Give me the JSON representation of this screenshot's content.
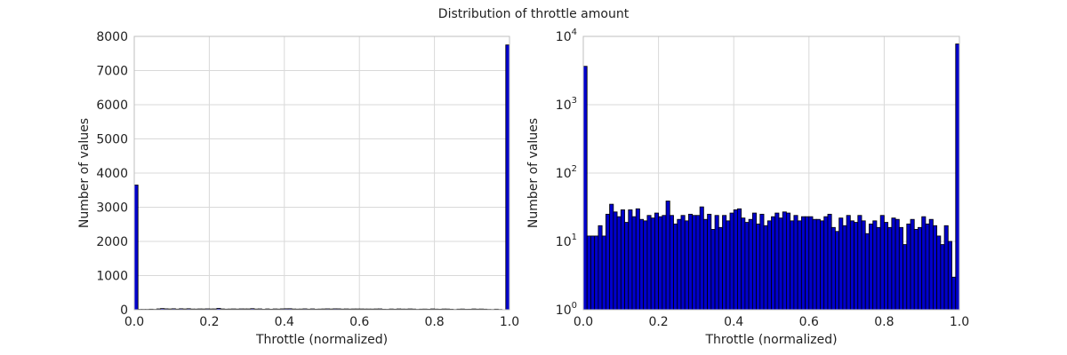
{
  "figure_title": "Distribution of throttle amount",
  "chart_data": [
    {
      "type": "bar",
      "scale": "linear",
      "xlabel": "Throttle (normalized)",
      "ylabel": "Number of values",
      "xlim": [
        0,
        1
      ],
      "ylim": [
        0,
        8000
      ],
      "xticks": [
        "0.0",
        "0.2",
        "0.4",
        "0.6",
        "0.8",
        "1.0"
      ],
      "yticks": [
        "0",
        "1000",
        "2000",
        "3000",
        "4000",
        "5000",
        "6000",
        "7000",
        "8000"
      ],
      "grid": true,
      "bar_color": "#0000cc",
      "bin_count": 100,
      "bin_width": 0.01,
      "values": [
        3650,
        12,
        12,
        12,
        17,
        12,
        25,
        35,
        27,
        23,
        29,
        19,
        29,
        23,
        30,
        21,
        20,
        24,
        22,
        26,
        23,
        24,
        39,
        24,
        18,
        21,
        24,
        20,
        25,
        24,
        24,
        32,
        21,
        25,
        15,
        24,
        16,
        24,
        20,
        26,
        29,
        30,
        22,
        19,
        21,
        26,
        18,
        25,
        17,
        20,
        23,
        26,
        22,
        27,
        26,
        20,
        24,
        20,
        23,
        23,
        23,
        21,
        21,
        20,
        23,
        25,
        16,
        14,
        22,
        17,
        24,
        20,
        19,
        24,
        20,
        13,
        18,
        20,
        16,
        24,
        19,
        16,
        22,
        21,
        16,
        9,
        18,
        21,
        15,
        16,
        23,
        18,
        21,
        17,
        12,
        9,
        17,
        10,
        3,
        7750
      ]
    },
    {
      "type": "bar",
      "scale": "log",
      "xlabel": "Throttle (normalized)",
      "ylabel": "Number of values",
      "xlim": [
        0,
        1
      ],
      "ylim": [
        1,
        10000
      ],
      "xticks": [
        "0.0",
        "0.2",
        "0.4",
        "0.6",
        "0.8",
        "1.0"
      ],
      "yticks": [
        {
          "base": "10",
          "exp": "0"
        },
        {
          "base": "10",
          "exp": "1"
        },
        {
          "base": "10",
          "exp": "2"
        },
        {
          "base": "10",
          "exp": "3"
        },
        {
          "base": "10",
          "exp": "4"
        }
      ],
      "grid": true,
      "bar_color": "#0000cc",
      "bin_count": 100,
      "bin_width": 0.01,
      "values": [
        3650,
        12,
        12,
        12,
        17,
        12,
        25,
        35,
        27,
        23,
        29,
        19,
        29,
        23,
        30,
        21,
        20,
        24,
        22,
        26,
        23,
        24,
        39,
        24,
        18,
        21,
        24,
        20,
        25,
        24,
        24,
        32,
        21,
        25,
        15,
        24,
        16,
        24,
        20,
        26,
        29,
        30,
        22,
        19,
        21,
        26,
        18,
        25,
        17,
        20,
        23,
        26,
        22,
        27,
        26,
        20,
        24,
        20,
        23,
        23,
        23,
        21,
        21,
        20,
        23,
        25,
        16,
        14,
        22,
        17,
        24,
        20,
        19,
        24,
        20,
        13,
        18,
        20,
        16,
        24,
        19,
        16,
        22,
        21,
        16,
        9,
        18,
        21,
        15,
        16,
        23,
        18,
        21,
        17,
        12,
        9,
        17,
        10,
        3,
        7750
      ]
    }
  ]
}
